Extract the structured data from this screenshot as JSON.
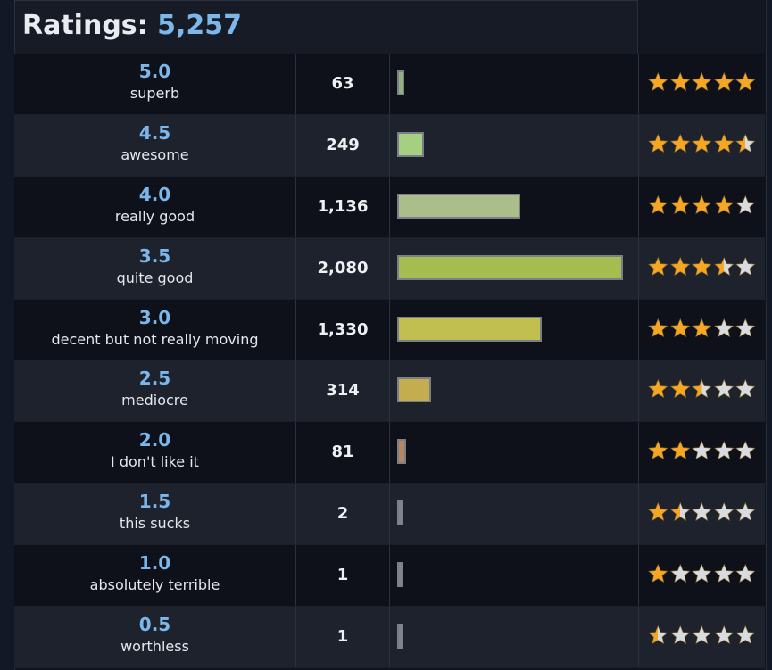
{
  "header": {
    "label": "Ratings:",
    "total": "5,257"
  },
  "colors": {
    "score_text": "#7cb7ec",
    "star_fill": "#f5a623",
    "star_empty": "#d8dbe0",
    "bar_border": "#7a7f89"
  },
  "chart_data": {
    "type": "bar",
    "title": "Ratings: 5,257",
    "orientation": "horizontal",
    "categories": [
      "5.0",
      "4.5",
      "4.0",
      "3.5",
      "3.0",
      "2.5",
      "2.0",
      "1.5",
      "1.0",
      "0.5"
    ],
    "values": [
      63,
      249,
      1136,
      2080,
      1330,
      314,
      81,
      2,
      1,
      1
    ],
    "xlim": [
      0,
      2080
    ],
    "rows": [
      {
        "score": "5.0",
        "desc": "superb",
        "count": "63",
        "value": 63,
        "stars": 5.0,
        "bar_color": "#8fb37e"
      },
      {
        "score": "4.5",
        "desc": "awesome",
        "count": "249",
        "value": 249,
        "stars": 4.5,
        "bar_color": "#a6cf81"
      },
      {
        "score": "4.0",
        "desc": "really good",
        "count": "1,136",
        "value": 1136,
        "stars": 4.0,
        "bar_color": "#aabe8c"
      },
      {
        "score": "3.5",
        "desc": "quite good",
        "count": "2,080",
        "value": 2080,
        "stars": 3.5,
        "bar_color": "#a5bd50"
      },
      {
        "score": "3.0",
        "desc": "decent but not really moving",
        "count": "1,330",
        "value": 1330,
        "stars": 3.0,
        "bar_color": "#c0bf50"
      },
      {
        "score": "2.5",
        "desc": "mediocre",
        "count": "314",
        "value": 314,
        "stars": 2.5,
        "bar_color": "#c4ad4e"
      },
      {
        "score": "2.0",
        "desc": "I don't like it",
        "count": "81",
        "value": 81,
        "stars": 2.0,
        "bar_color": "#b7865e"
      },
      {
        "score": "1.5",
        "desc": "this sucks",
        "count": "2",
        "value": 2,
        "stars": 1.5,
        "bar_color": "#7f8590"
      },
      {
        "score": "1.0",
        "desc": "absolutely terrible",
        "count": "1",
        "value": 1,
        "stars": 1.0,
        "bar_color": "#7f8590"
      },
      {
        "score": "0.5",
        "desc": "worthless",
        "count": "1",
        "value": 1,
        "stars": 0.5,
        "bar_color": "#7f8590"
      }
    ]
  }
}
